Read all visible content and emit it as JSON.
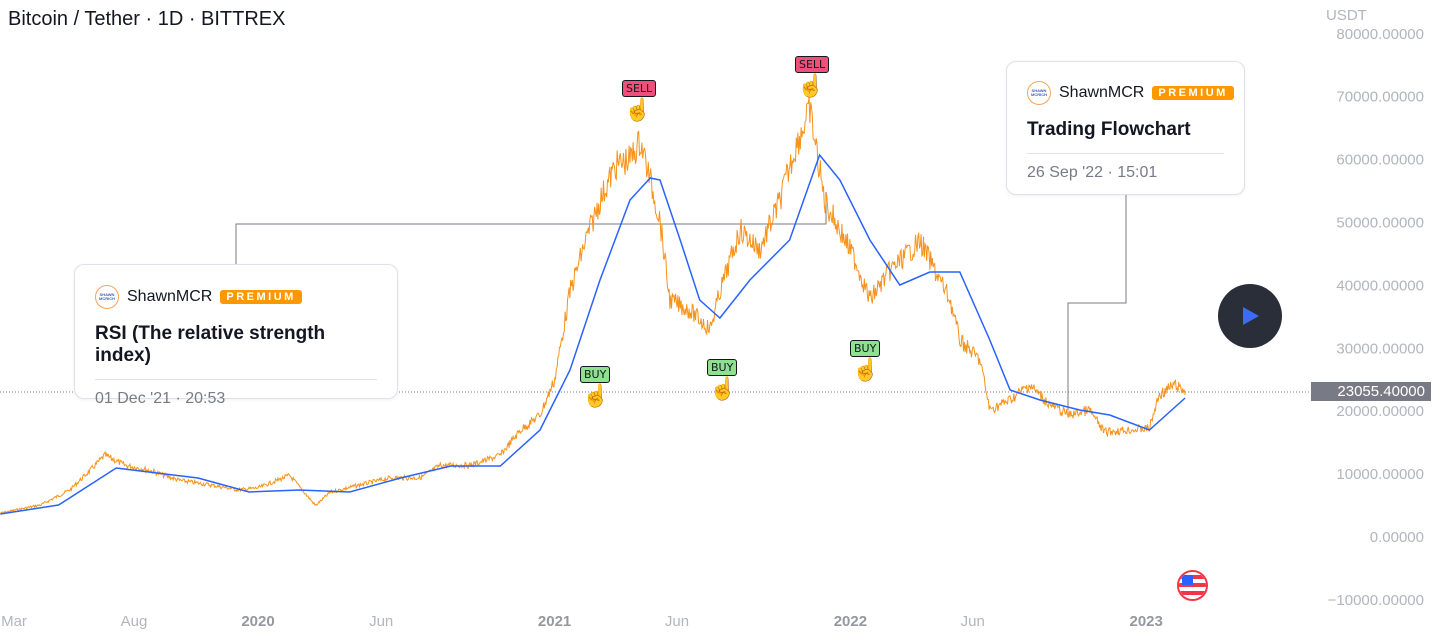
{
  "header": {
    "title": "Bitcoin / Tether · 1D · BITTREX",
    "currency": "USDT"
  },
  "last_price": "23055.40000",
  "cards": [
    {
      "author": "ShawnMCR",
      "badge": "PREMIUM",
      "avatar_text": "SHAWN MCRICH",
      "title": "RSI (The relative strength index)",
      "date": "01 Dec '21 · 20:53"
    },
    {
      "author": "ShawnMCR",
      "badge": "PREMIUM",
      "avatar_text": "SHAWN MCRICH",
      "title": "Trading Flowchart",
      "date": "26 Sep '22 · 15:01"
    }
  ],
  "signals": [
    {
      "label": "SELL",
      "type": "sell",
      "date": "2021-04-14"
    },
    {
      "label": "SELL",
      "type": "sell",
      "date": "2021-11-10"
    },
    {
      "label": "BUY",
      "type": "buy",
      "date": "2021-02-05"
    },
    {
      "label": "BUY",
      "type": "buy",
      "date": "2021-06-20"
    },
    {
      "label": "BUY",
      "type": "buy",
      "date": "2022-01-17"
    }
  ],
  "colors": {
    "price": "#f7931a",
    "ma": "#2962ff",
    "text_muted": "#b2b5be",
    "play_bg": "#2a2e39",
    "play_icon": "#3b6cf6"
  },
  "icons": {
    "play": "play-icon",
    "flag": "us-flag-icon",
    "hand": "pointing-hand-icon"
  },
  "chart_data": {
    "type": "line",
    "title": "Bitcoin / Tether · 1D · BITTREX",
    "ylabel": "USDT",
    "ylim": [
      -10000,
      80000
    ],
    "yticks": [
      "80000.00000",
      "70000.00000",
      "60000.00000",
      "50000.00000",
      "40000.00000",
      "30000.00000",
      "20000.00000",
      "10000.00000",
      "0.00000",
      "−10000.00000"
    ],
    "ytick_values": [
      80000,
      70000,
      60000,
      50000,
      40000,
      30000,
      20000,
      10000,
      0,
      -10000
    ],
    "xticks": [
      {
        "label": "Mar",
        "date": "2019-03-01",
        "year": false
      },
      {
        "label": "Aug",
        "date": "2019-08-01",
        "year": false
      },
      {
        "label": "2020",
        "date": "2020-01-01",
        "year": true
      },
      {
        "label": "Jun",
        "date": "2020-06-01",
        "year": false
      },
      {
        "label": "2021",
        "date": "2021-01-01",
        "year": true
      },
      {
        "label": "Jun",
        "date": "2021-06-01",
        "year": false
      },
      {
        "label": "2022",
        "date": "2022-01-01",
        "year": true
      },
      {
        "label": "Jun",
        "date": "2022-06-01",
        "year": false
      },
      {
        "label": "2023",
        "date": "2023-01-01",
        "year": true
      }
    ],
    "grid": false,
    "series": [
      {
        "role": "price",
        "color": "#f7931a",
        "points": [
          [
            "2019-02-17",
            3800
          ],
          [
            "2019-04-08",
            5100
          ],
          [
            "2019-05-14",
            7500
          ],
          [
            "2019-06-08",
            10600
          ],
          [
            "2019-06-26",
            13000
          ],
          [
            "2019-07-21",
            11400
          ],
          [
            "2019-08-20",
            10600
          ],
          [
            "2019-09-26",
            9000
          ],
          [
            "2019-11-02",
            8300
          ],
          [
            "2019-12-08",
            7500
          ],
          [
            "2020-01-01",
            7800
          ],
          [
            "2020-02-09",
            9800
          ],
          [
            "2020-03-12",
            5000
          ],
          [
            "2020-03-30",
            7100
          ],
          [
            "2020-05-06",
            8300
          ],
          [
            "2020-06-12",
            9400
          ],
          [
            "2020-07-19",
            9400
          ],
          [
            "2020-08-13",
            11400
          ],
          [
            "2020-09-19",
            11400
          ],
          [
            "2020-10-26",
            13000
          ],
          [
            "2020-11-20",
            17000
          ],
          [
            "2020-12-14",
            19400
          ],
          [
            "2021-01-01",
            25000
          ],
          [
            "2021-01-20",
            39000
          ],
          [
            "2021-02-08",
            47000
          ],
          [
            "2021-02-26",
            53500
          ],
          [
            "2021-03-17",
            59000
          ],
          [
            "2021-04-04",
            60000
          ],
          [
            "2021-04-17",
            63000
          ],
          [
            "2021-05-11",
            50400
          ],
          [
            "2021-05-23",
            37700
          ],
          [
            "2021-06-17",
            36000
          ],
          [
            "2021-07-12",
            33000
          ],
          [
            "2021-07-24",
            39000
          ],
          [
            "2021-08-18",
            48800
          ],
          [
            "2021-09-11",
            45600
          ],
          [
            "2021-10-06",
            53500
          ],
          [
            "2021-10-24",
            61500
          ],
          [
            "2021-11-12",
            67900
          ],
          [
            "2021-11-30",
            53500
          ],
          [
            "2021-12-19",
            48800
          ],
          [
            "2022-01-07",
            44000
          ],
          [
            "2022-01-25",
            37700
          ],
          [
            "2022-02-19",
            42400
          ],
          [
            "2022-03-28",
            47000
          ],
          [
            "2022-04-15",
            42400
          ],
          [
            "2022-05-04",
            37700
          ],
          [
            "2022-05-16",
            31300
          ],
          [
            "2022-06-10",
            28100
          ],
          [
            "2022-06-22",
            20200
          ],
          [
            "2022-07-17",
            21800
          ],
          [
            "2022-08-10",
            24200
          ],
          [
            "2022-09-04",
            21000
          ],
          [
            "2022-09-28",
            19400
          ],
          [
            "2022-10-23",
            20200
          ],
          [
            "2022-11-10",
            16700
          ],
          [
            "2022-12-11",
            17000
          ],
          [
            "2023-01-05",
            17300
          ],
          [
            "2023-01-17",
            22600
          ],
          [
            "2023-02-05",
            24200
          ],
          [
            "2023-02-18",
            23055.4
          ]
        ]
      },
      {
        "role": "moving-average",
        "color": "#2962ff",
        "points": [
          [
            "2019-02-17",
            3660
          ],
          [
            "2019-04-30",
            5090
          ],
          [
            "2019-07-10",
            10970
          ],
          [
            "2019-10-19",
            9380
          ],
          [
            "2019-12-21",
            7150
          ],
          [
            "2020-02-21",
            7470
          ],
          [
            "2020-04-23",
            7150
          ],
          [
            "2020-06-25",
            9380
          ],
          [
            "2020-08-26",
            11290
          ],
          [
            "2020-10-26",
            11290
          ],
          [
            "2020-12-14",
            17010
          ],
          [
            "2021-01-20",
            26550
          ],
          [
            "2021-02-26",
            40860
          ],
          [
            "2021-04-04",
            53580
          ],
          [
            "2021-04-29",
            57070
          ],
          [
            "2021-05-11",
            56760
          ],
          [
            "2021-06-05",
            47220
          ],
          [
            "2021-06-29",
            37680
          ],
          [
            "2021-07-24",
            34820
          ],
          [
            "2021-08-30",
            40860
          ],
          [
            "2021-10-18",
            47220
          ],
          [
            "2021-11-24",
            60730
          ],
          [
            "2021-12-19",
            56760
          ],
          [
            "2022-01-25",
            47220
          ],
          [
            "2022-03-03",
            40060
          ],
          [
            "2022-04-09",
            42130
          ],
          [
            "2022-05-16",
            42130
          ],
          [
            "2022-06-22",
            31320
          ],
          [
            "2022-07-17",
            23370
          ],
          [
            "2022-08-23",
            21780
          ],
          [
            "2022-10-11",
            20190
          ],
          [
            "2022-11-17",
            19400
          ],
          [
            "2023-01-05",
            17010
          ],
          [
            "2023-02-18",
            22100
          ]
        ]
      }
    ]
  }
}
